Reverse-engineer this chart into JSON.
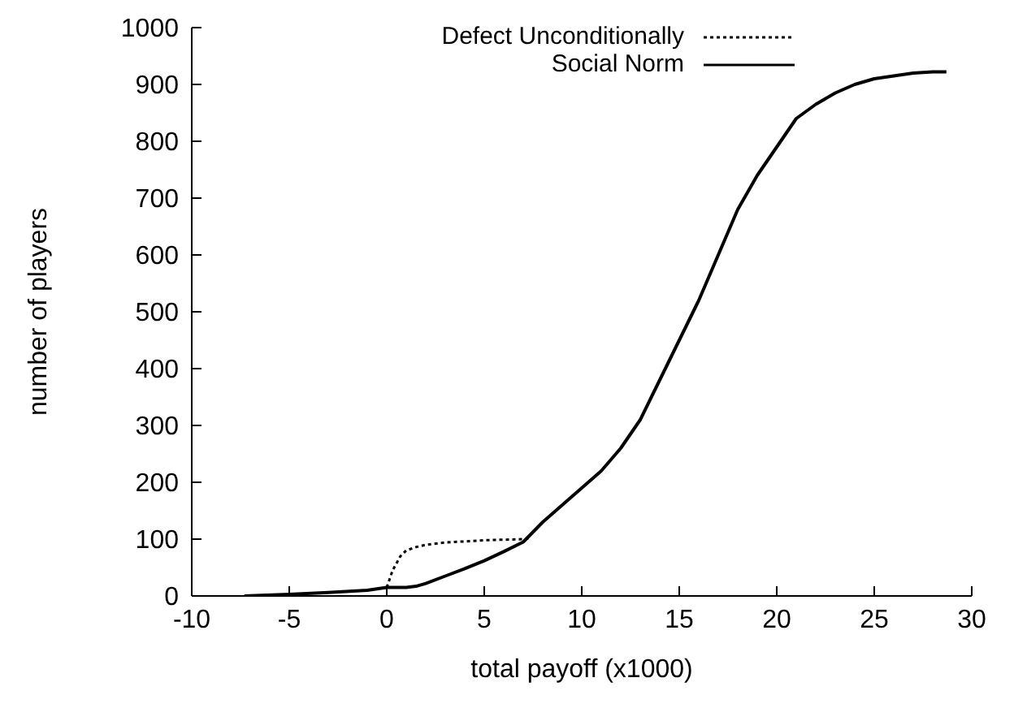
{
  "chart_data": {
    "type": "line",
    "xlabel": "total payoff (x1000)",
    "ylabel": "number of players",
    "xlim": [
      -10,
      30
    ],
    "xticks": [
      -10,
      -5,
      0,
      5,
      10,
      15,
      20,
      25,
      30
    ],
    "ylim": [
      0,
      1000
    ],
    "yticks": [
      0,
      100,
      200,
      300,
      400,
      500,
      600,
      700,
      800,
      900,
      1000
    ],
    "grid": false,
    "legend": "top right",
    "marker": "none",
    "series": [
      {
        "name": "Defect Unconditionally",
        "color": "#000000",
        "line_style": "dotted",
        "x": [
          0,
          0.3,
          0.7,
          1,
          1.5,
          2,
          3,
          4,
          5,
          6,
          7,
          7.3
        ],
        "values": [
          15,
          45,
          70,
          80,
          86,
          90,
          94,
          96,
          98,
          99,
          100,
          102
        ]
      },
      {
        "name": "Social Norm",
        "color": "#000000",
        "line_style": "solid",
        "x": [
          -7.3,
          -5,
          -3,
          -1,
          0,
          1,
          1.5,
          2,
          3,
          4,
          5,
          6,
          7,
          8,
          9,
          10,
          11,
          12,
          13,
          14,
          15,
          16,
          17,
          18,
          19,
          20,
          21,
          22,
          23,
          24,
          25,
          26,
          27,
          28,
          28.7
        ],
        "values": [
          0,
          3,
          6,
          10,
          15,
          15,
          17,
          22,
          35,
          48,
          62,
          78,
          95,
          130,
          160,
          190,
          220,
          260,
          310,
          380,
          450,
          520,
          600,
          680,
          740,
          790,
          840,
          865,
          885,
          900,
          910,
          915,
          920,
          922,
          922
        ]
      }
    ]
  }
}
